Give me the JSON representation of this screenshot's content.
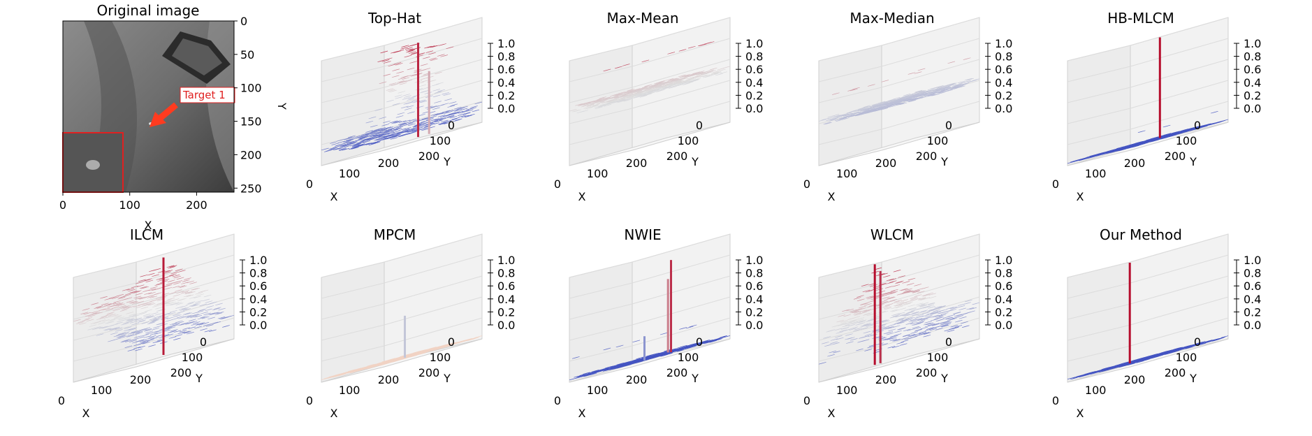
{
  "chart_data": [
    {
      "type": "image",
      "title": "Original image",
      "xlabel": "X",
      "ylabel": "Y",
      "x_ticks": [
        "0",
        "100",
        "200"
      ],
      "y_ticks": [
        "0",
        "50",
        "100",
        "150",
        "200",
        "250"
      ],
      "xlim": [
        0,
        256
      ],
      "ylim": [
        256,
        0
      ],
      "target": {
        "label": "Target 1",
        "x": 128,
        "y": 150
      },
      "inset": "zoomed target patch (bottom-left, red border)"
    },
    {
      "type": "surface3d",
      "title": "Top-Hat",
      "profile": "rough",
      "zlim": [
        0,
        1
      ],
      "z_ticks": [
        "0.0",
        "0.2",
        "0.4",
        "0.6",
        "0.8",
        "1.0"
      ],
      "x_ticks": [
        "0",
        "100",
        "200"
      ],
      "y_ticks": [
        "0",
        "100",
        "200"
      ],
      "xlabel": "X",
      "ylabel": "Y",
      "colormap": "coolwarm"
    },
    {
      "type": "surface3d",
      "title": "Max-Mean",
      "profile": "flat-high",
      "zlim": [
        0,
        1
      ],
      "z_ticks": [
        "0.0",
        "0.2",
        "0.4",
        "0.6",
        "0.8",
        "1.0"
      ],
      "x_ticks": [
        "0",
        "100",
        "200"
      ],
      "y_ticks": [
        "0",
        "100",
        "200"
      ],
      "xlabel": "X",
      "ylabel": "Y",
      "colormap": "coolwarm"
    },
    {
      "type": "surface3d",
      "title": "Max-Median",
      "profile": "flat-mid",
      "zlim": [
        0,
        1
      ],
      "z_ticks": [
        "0.0",
        "0.2",
        "0.4",
        "0.6",
        "0.8",
        "1.0"
      ],
      "x_ticks": [
        "0",
        "100",
        "200"
      ],
      "y_ticks": [
        "0",
        "100",
        "200"
      ],
      "xlabel": "X",
      "ylabel": "Y",
      "colormap": "coolwarm"
    },
    {
      "type": "surface3d",
      "title": "HB-MLCM",
      "profile": "flat-low-spike",
      "zlim": [
        0,
        1
      ],
      "z_ticks": [
        "0.0",
        "0.2",
        "0.4",
        "0.6",
        "0.8",
        "1.0"
      ],
      "x_ticks": [
        "0",
        "100",
        "200"
      ],
      "y_ticks": [
        "0",
        "100",
        "200"
      ],
      "xlabel": "X",
      "ylabel": "Y",
      "colormap": "coolwarm"
    },
    {
      "type": "surface3d",
      "title": "ILCM",
      "profile": "ramp",
      "zlim": [
        0,
        1
      ],
      "z_ticks": [
        "0.0",
        "0.2",
        "0.4",
        "0.6",
        "0.8",
        "1.0"
      ],
      "x_ticks": [
        "0",
        "100",
        "200"
      ],
      "y_ticks": [
        "0",
        "100",
        "200"
      ],
      "xlabel": "X",
      "ylabel": "Y",
      "colormap": "coolwarm"
    },
    {
      "type": "surface3d",
      "title": "MPCM",
      "profile": "flat-pale-spike",
      "zlim": [
        0,
        1
      ],
      "z_ticks": [
        "0.0",
        "0.2",
        "0.4",
        "0.6",
        "0.8",
        "1.0"
      ],
      "x_ticks": [
        "0",
        "100",
        "200"
      ],
      "y_ticks": [
        "0",
        "100",
        "200"
      ],
      "xlabel": "X",
      "ylabel": "Y",
      "colormap": "coolwarm"
    },
    {
      "type": "surface3d",
      "title": "NWIE",
      "profile": "flat-low-spikes",
      "zlim": [
        0,
        1
      ],
      "z_ticks": [
        "0.0",
        "0.2",
        "0.4",
        "0.6",
        "0.8",
        "1.0"
      ],
      "x_ticks": [
        "0",
        "100",
        "200"
      ],
      "y_ticks": [
        "0",
        "100",
        "200"
      ],
      "xlabel": "X",
      "ylabel": "Y",
      "colormap": "coolwarm"
    },
    {
      "type": "surface3d",
      "title": "WLCM",
      "profile": "mound",
      "zlim": [
        0,
        1
      ],
      "z_ticks": [
        "0.0",
        "0.2",
        "0.4",
        "0.6",
        "0.8",
        "1.0"
      ],
      "x_ticks": [
        "0",
        "100",
        "200"
      ],
      "y_ticks": [
        "0",
        "100",
        "200"
      ],
      "xlabel": "X",
      "ylabel": "Y",
      "colormap": "coolwarm"
    },
    {
      "type": "surface3d",
      "title": "Our Method",
      "profile": "flat-low-single-spike",
      "zlim": [
        0,
        1
      ],
      "z_ticks": [
        "0.0",
        "0.2",
        "0.4",
        "0.6",
        "0.8",
        "1.0"
      ],
      "x_ticks": [
        "0",
        "100",
        "200"
      ],
      "y_ticks": [
        "0",
        "100",
        "200"
      ],
      "xlabel": "X",
      "ylabel": "Y",
      "colormap": "coolwarm"
    }
  ]
}
